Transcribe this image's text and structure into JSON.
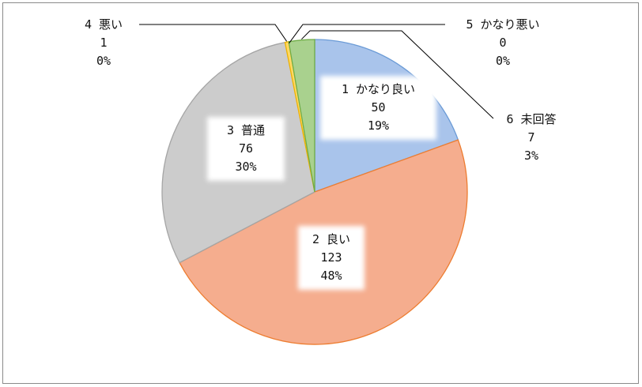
{
  "chart_data": {
    "type": "pie",
    "title": "",
    "slices": [
      {
        "category": "1 かなり良い",
        "count": "50",
        "percent": "19%",
        "value": 50,
        "color": "#a9c4eb",
        "edge": "#6b9bd6"
      },
      {
        "category": "2 良い",
        "count": "123",
        "percent": "48%",
        "value": 123,
        "color": "#f5ad8e",
        "edge": "#ed7d31"
      },
      {
        "category": "3 普通",
        "count": "76",
        "percent": "30%",
        "value": 76,
        "color": "#cccccc",
        "edge": "#a5a5a5"
      },
      {
        "category": "4 悪い",
        "count": "1",
        "percent": "0%",
        "value": 1,
        "color": "#ffd966",
        "edge": "#f0b400"
      },
      {
        "category": "5 かなり悪い",
        "count": "0",
        "percent": "0%",
        "value": 0,
        "color": "#9dc3e6",
        "edge": "#5b9bd5"
      },
      {
        "category": "6 未回答",
        "count": "7",
        "percent": "3%",
        "value": 7,
        "color": "#a9d18e",
        "edge": "#70ad47"
      }
    ]
  }
}
